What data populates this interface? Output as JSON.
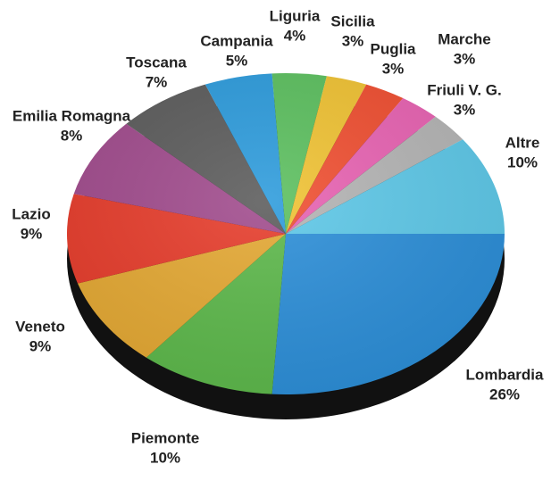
{
  "chart_data": {
    "type": "pie",
    "categories": [
      "Lombardia",
      "Piemonte",
      "Veneto",
      "Lazio",
      "Emilia Romagna",
      "Toscana",
      "Campania",
      "Liguria",
      "Sicilia",
      "Puglia",
      "Marche",
      "Friuli V. G.",
      "Altre"
    ],
    "values": [
      26,
      10,
      9,
      9,
      8,
      7,
      5,
      4,
      3,
      3,
      3,
      3,
      10
    ],
    "value_labels": [
      "26%",
      "10%",
      "9%",
      "9%",
      "8%",
      "7%",
      "5%",
      "4%",
      "3%",
      "3%",
      "3%",
      "3%",
      "10%"
    ],
    "colors": [
      "#2b8ed8",
      "#5cb84a",
      "#e4a832",
      "#e63b2a",
      "#a04a8c",
      "#5b5b5b",
      "#2c9bdc",
      "#5bbf5e",
      "#f0c232",
      "#f04e30",
      "#e862b2",
      "#b4b4b4",
      "#5dc8e8"
    ]
  }
}
